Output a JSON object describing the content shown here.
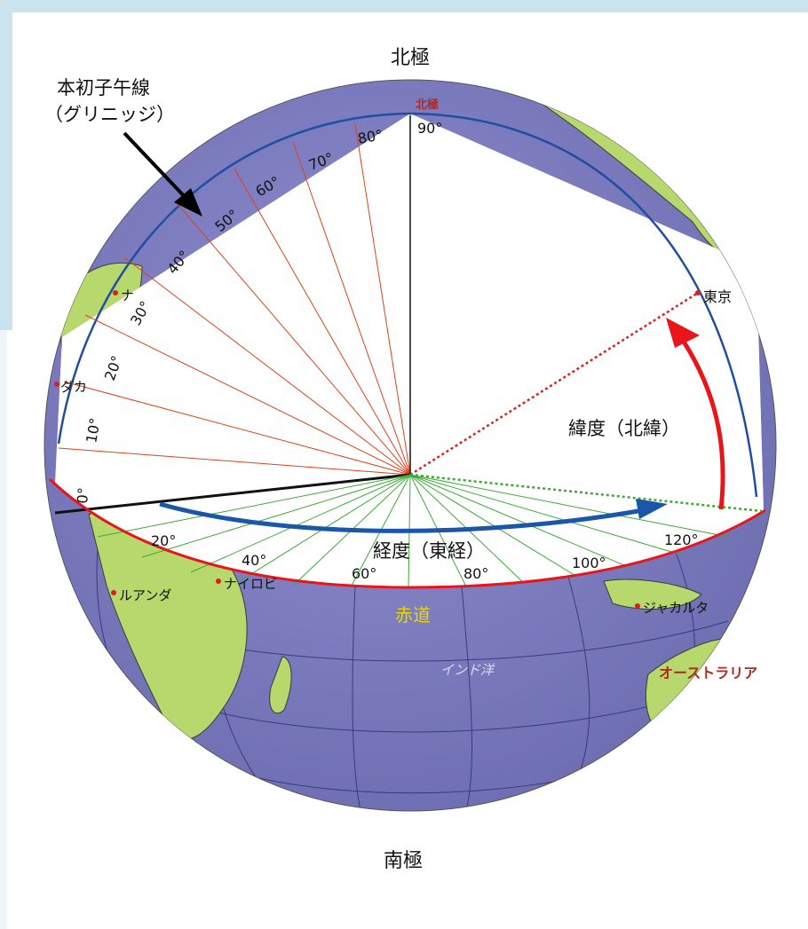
{
  "labels": {
    "north_pole_top": "北極",
    "south_pole_bottom": "南極",
    "prime_meridian_line1": "本初子午線",
    "prime_meridian_line2": "（グリニッジ）",
    "latitude": "緯度（北緯）",
    "longitude": "経度（東経）",
    "equator": "赤道",
    "tokyo": "東京",
    "north_pole_globe": "北極",
    "indian_ocean": "インド洋",
    "australia": "オーストラリア",
    "nairobi": "ナイロビ",
    "luanda": "ルアンダ",
    "jakarta": "ジャカルタ",
    "dakar": "ダカ",
    "city_fragment": "ナ"
  },
  "latitude_ticks": [
    "0°",
    "10°",
    "20°",
    "30°",
    "40°",
    "50°",
    "60°",
    "70°",
    "80°",
    "90°"
  ],
  "longitude_ticks": [
    "20°",
    "40°",
    "60°",
    "80°",
    "100°",
    "120°"
  ],
  "colors": {
    "ocean": "#7a7abb",
    "land": "#b6d86c",
    "latitude_lines": "#e0401a",
    "longitude_lines": "#3daa35",
    "latitude_arrow": "#e8161b",
    "longitude_arrow": "#1a57a8",
    "equator_label": "#e8d800",
    "australia_label": "#b0281f"
  }
}
